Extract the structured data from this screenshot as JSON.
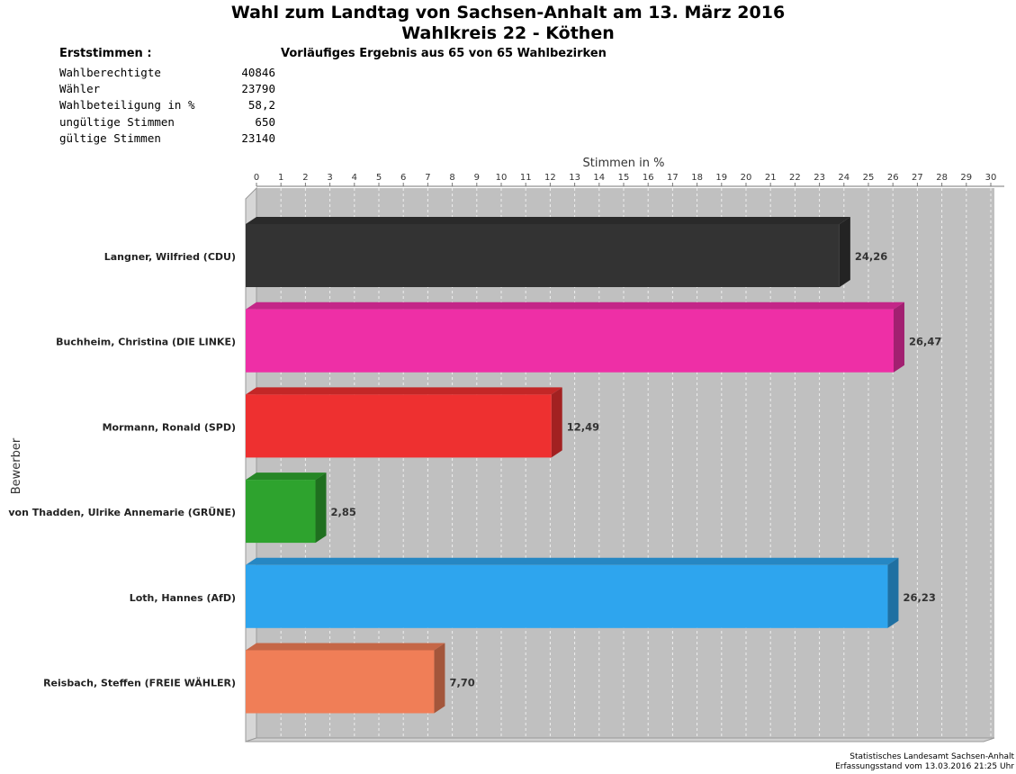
{
  "title_line1": "Wahl zum Landtag von Sachsen-Anhalt am 13. März 2016",
  "title_line2": "Wahlkreis 22 - Köthen",
  "stats_heading": "Erststimmen  :",
  "preliminary_note": "Vorläufiges Ergebnis aus 65 von 65 Wahlbezirken",
  "stats": [
    {
      "label": "Wahlberechtigte",
      "value": "40846"
    },
    {
      "label": "Wähler",
      "value": "23790"
    },
    {
      "label": "Wahlbeteiligung in %",
      "value": "58,2"
    },
    {
      "label": "ungültige Stimmen",
      "value": "650"
    },
    {
      "label": "gültige Stimmen",
      "value": "23140"
    }
  ],
  "footer_line1": "Statistisches Landesamt Sachsen-Anhalt",
  "footer_line2": "Erfassungsstand vom 13.03.2016 21:25 Uhr",
  "chart_data": {
    "type": "bar",
    "orientation": "horizontal",
    "xlabel": "Stimmen in %",
    "ylabel": "Bewerber",
    "xlim": [
      0,
      30
    ],
    "x_ticks": [
      0,
      1,
      2,
      3,
      4,
      5,
      6,
      7,
      8,
      9,
      10,
      11,
      12,
      13,
      14,
      15,
      16,
      17,
      18,
      19,
      20,
      21,
      22,
      23,
      24,
      25,
      26,
      27,
      28,
      29,
      30
    ],
    "x_axis_position": "top",
    "grid": true,
    "categories": [
      "Langner, Wilfried (CDU)",
      "Buchheim, Christina (DIE LINKE)",
      "Mormann, Ronald (SPD)",
      "von Thadden, Ulrike Annemarie (GRÜNE)",
      "Loth, Hannes (AfD)",
      "Reisbach, Steffen (FREIE WÄHLER)"
    ],
    "values": [
      24.26,
      26.47,
      12.49,
      2.85,
      26.23,
      7.7
    ],
    "value_labels": [
      "24,26",
      "26,47",
      "12,49",
      "2,85",
      "26,23",
      "7,70"
    ],
    "colors": [
      "#333333",
      "#ee2fa6",
      "#ee3030",
      "#2ea32e",
      "#2ea5ee",
      "#f07e57"
    ]
  }
}
